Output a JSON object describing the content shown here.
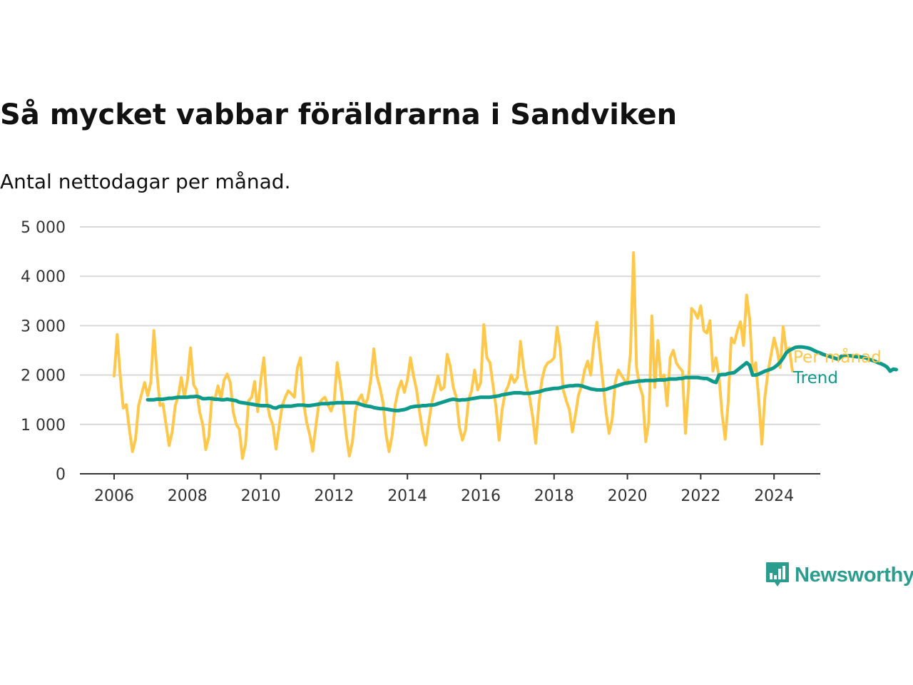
{
  "header": {
    "title": "Så mycket vabbar föräldrarna i Sandviken",
    "subtitle": "Antal nettodagar per månad."
  },
  "brand": {
    "name": "Newsworthy",
    "color": "#2a9d8f",
    "icon": "newsworthy-chart-bubble-icon"
  },
  "colors": {
    "monthly": "#ffc84a",
    "trend": "#0e9a8a",
    "grid": "#d9d9d9",
    "axis": "#333333"
  },
  "chart_data": {
    "type": "line",
    "title": "Så mycket vabbar föräldrarna i Sandviken",
    "subtitle": "Antal nettodagar per månad.",
    "xlabel": "",
    "ylabel": "",
    "xlim": [
      2005.7,
      2025.5
    ],
    "ylim": [
      0,
      5000
    ],
    "x_ticks": [
      2006,
      2008,
      2010,
      2012,
      2014,
      2016,
      2018,
      2020,
      2022,
      2024
    ],
    "x_tick_labels": [
      "2006",
      "2008",
      "2010",
      "2012",
      "2014",
      "2016",
      "2018",
      "2020",
      "2022",
      "2024"
    ],
    "y_ticks": [
      0,
      1000,
      2000,
      3000,
      4000,
      5000
    ],
    "y_tick_labels": [
      "0",
      "1 000",
      "2 000",
      "3 000",
      "4 000",
      "5 000"
    ],
    "grid": "horizontal",
    "legend": "labels at right end of lines",
    "series": [
      {
        "name": "Per månad",
        "color": "#ffc84a",
        "start": 2006.0,
        "step_months": 1,
        "values": [
          1980,
          2820,
          1980,
          1330,
          1400,
          900,
          450,
          700,
          1380,
          1620,
          1850,
          1580,
          1850,
          2900,
          2050,
          1380,
          1420,
          1000,
          570,
          850,
          1380,
          1580,
          1950,
          1550,
          1900,
          2550,
          1800,
          1700,
          1250,
          1000,
          490,
          750,
          1550,
          1520,
          1780,
          1520,
          1900,
          2020,
          1850,
          1250,
          1000,
          900,
          310,
          600,
          1480,
          1550,
          1870,
          1260,
          1900,
          2350,
          1450,
          1150,
          980,
          500,
          950,
          1380,
          1550,
          1680,
          1620,
          1550,
          2150,
          2350,
          1450,
          1050,
          800,
          460,
          950,
          1420,
          1500,
          1550,
          1400,
          1270,
          1450,
          2250,
          1850,
          1380,
          780,
          360,
          650,
          1280,
          1500,
          1600,
          1380,
          1520,
          1900,
          2530,
          1980,
          1750,
          1450,
          800,
          450,
          780,
          1400,
          1700,
          1880,
          1650,
          1900,
          2350,
          1980,
          1700,
          1250,
          850,
          580,
          1050,
          1450,
          1700,
          1980,
          1700,
          1750,
          2420,
          2180,
          1750,
          1550,
          950,
          680,
          880,
          1500,
          1680,
          2100,
          1700,
          1850,
          3020,
          2350,
          2250,
          1800,
          1350,
          680,
          1300,
          1650,
          1780,
          2000,
          1850,
          1950,
          2680,
          2150,
          1750,
          1550,
          1150,
          620,
          1400,
          1900,
          2150,
          2250,
          2280,
          2350,
          2970,
          2550,
          1700,
          1480,
          1300,
          850,
          1200,
          1600,
          1780,
          2100,
          2280,
          2000,
          2650,
          3070,
          2450,
          1850,
          1250,
          820,
          1100,
          1850,
          2100,
          2000,
          1900,
          1820,
          2450,
          4480,
          2150,
          1780,
          1580,
          650,
          1050,
          3200,
          1750,
          2700,
          1900,
          2000,
          1380,
          2350,
          2500,
          2250,
          2150,
          2080,
          820,
          1750,
          3350,
          3280,
          3150,
          3400,
          2900,
          2850,
          3100,
          2080,
          2350,
          1950,
          1200,
          700,
          1450,
          2750,
          2650,
          2900,
          3080,
          2600,
          3620,
          3150,
          2050,
          2250,
          1500,
          600,
          1550,
          2050,
          2400,
          2750,
          2500,
          2150,
          2980,
          2480,
          2550,
          2080
        ]
      },
      {
        "name": "Trend",
        "color": "#0e9a8a",
        "start": 2006.9167,
        "step_months": 1,
        "values": [
          1500,
          1500,
          1500,
          1510,
          1510,
          1510,
          1520,
          1530,
          1530,
          1540,
          1550,
          1550,
          1550,
          1550,
          1560,
          1560,
          1570,
          1550,
          1520,
          1520,
          1530,
          1520,
          1510,
          1510,
          1500,
          1500,
          1510,
          1500,
          1490,
          1480,
          1450,
          1440,
          1430,
          1420,
          1410,
          1400,
          1390,
          1380,
          1380,
          1380,
          1370,
          1340,
          1330,
          1360,
          1370,
          1370,
          1370,
          1370,
          1380,
          1390,
          1390,
          1390,
          1380,
          1380,
          1390,
          1400,
          1410,
          1420,
          1420,
          1420,
          1430,
          1430,
          1440,
          1440,
          1440,
          1440,
          1440,
          1440,
          1440,
          1420,
          1400,
          1380,
          1370,
          1360,
          1340,
          1330,
          1320,
          1320,
          1310,
          1300,
          1290,
          1280,
          1280,
          1290,
          1300,
          1320,
          1350,
          1360,
          1370,
          1370,
          1380,
          1380,
          1390,
          1390,
          1400,
          1420,
          1440,
          1460,
          1480,
          1500,
          1510,
          1500,
          1490,
          1500,
          1500,
          1510,
          1520,
          1530,
          1540,
          1550,
          1550,
          1550,
          1550,
          1560,
          1570,
          1580,
          1600,
          1610,
          1620,
          1630,
          1640,
          1640,
          1640,
          1630,
          1630,
          1630,
          1640,
          1650,
          1660,
          1680,
          1700,
          1710,
          1720,
          1730,
          1730,
          1740,
          1760,
          1770,
          1780,
          1780,
          1790,
          1790,
          1780,
          1760,
          1740,
          1720,
          1710,
          1700,
          1700,
          1700,
          1710,
          1730,
          1750,
          1770,
          1790,
          1810,
          1830,
          1840,
          1850,
          1860,
          1870,
          1880,
          1880,
          1890,
          1890,
          1890,
          1890,
          1900,
          1900,
          1900,
          1910,
          1920,
          1920,
          1920,
          1930,
          1930,
          1950,
          1950,
          1950,
          1950,
          1950,
          1940,
          1930,
          1930,
          1900,
          1870,
          1850,
          2000,
          2010,
          2010,
          2030,
          2040,
          2050,
          2100,
          2150,
          2200,
          2250,
          2200,
          2000,
          2000,
          2020,
          2050,
          2080,
          2100,
          2120,
          2150,
          2200,
          2260,
          2350,
          2450,
          2500,
          2530,
          2560,
          2570,
          2570,
          2560,
          2550,
          2530,
          2500,
          2470,
          2450,
          2420,
          2400,
          2380,
          2360,
          2340,
          2320,
          2380,
          2390,
          2390,
          2390,
          2380,
          2370,
          2370,
          2360,
          2350,
          2320,
          2300,
          2280,
          2250,
          2230,
          2200,
          2160,
          2080,
          2120,
          2110
        ]
      }
    ]
  }
}
